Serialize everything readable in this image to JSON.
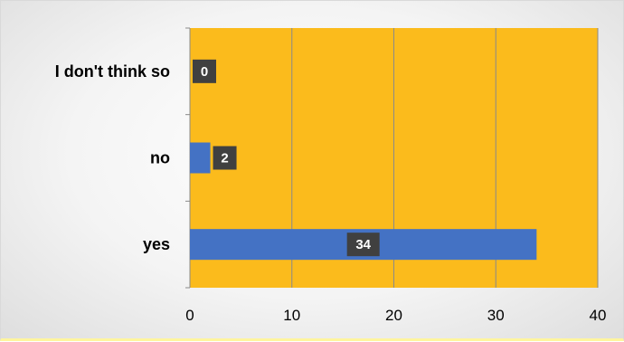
{
  "chart_data": {
    "type": "bar",
    "orientation": "horizontal",
    "categories": [
      "yes",
      "no",
      "I don't think so"
    ],
    "values": [
      34,
      2,
      0
    ],
    "data_labels": [
      "34",
      "2",
      "0"
    ],
    "xlim": [
      0,
      40
    ],
    "x_ticks": [
      0,
      10,
      20,
      30,
      40
    ],
    "x_tick_labels": [
      "0",
      "10",
      "20",
      "30",
      "40"
    ],
    "grid": "vertical",
    "legend": "none",
    "title": "",
    "xlabel": "",
    "ylabel": ""
  },
  "colors": {
    "plot_background": "#fbbb1c",
    "bar": "#4472c4",
    "gridline": "#8a8a8a",
    "axis": "#8a8a8a",
    "data_label_background": "#404040",
    "data_label_text": "#ffffff"
  }
}
